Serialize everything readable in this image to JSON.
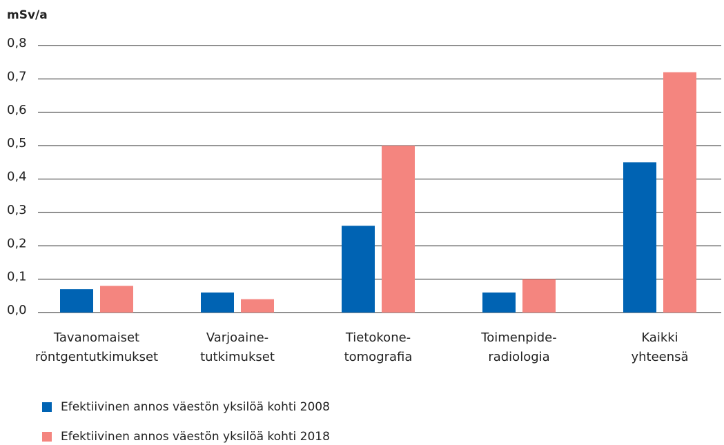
{
  "chart_data": {
    "type": "bar",
    "y_label": "mSv/a",
    "categories": [
      "Tavanomaiset\nröntgentutkimukset",
      "Varjoaine-\ntutkimukset",
      "Tietokone-\ntomografia",
      "Toimenpide-\nradiologia",
      "Kaikki\nyhteensä"
    ],
    "series": [
      {
        "name": "Efektiivinen annos väestön yksilöä kohti 2008",
        "color": "#0063b3",
        "values": [
          0.07,
          0.06,
          0.26,
          0.06,
          0.45
        ]
      },
      {
        "name": "Efektiivinen annos väestön yksilöä kohti 2018",
        "color": "#f4857f",
        "values": [
          0.08,
          0.04,
          0.5,
          0.1,
          0.72
        ]
      }
    ],
    "ylim": [
      0,
      0.8
    ],
    "yticks": [
      {
        "value": 0,
        "label": "0,0"
      },
      {
        "value": 0.1,
        "label": "0,1"
      },
      {
        "value": 0.2,
        "label": "0,2"
      },
      {
        "value": 0.3,
        "label": "0,3"
      },
      {
        "value": 0.4,
        "label": "0,4"
      },
      {
        "value": 0.5,
        "label": "0,5"
      },
      {
        "value": 0.6,
        "label": "0,6"
      },
      {
        "value": 0.7,
        "label": "0,7"
      },
      {
        "value": 0.8,
        "label": "0,8"
      }
    ],
    "grid": true
  }
}
